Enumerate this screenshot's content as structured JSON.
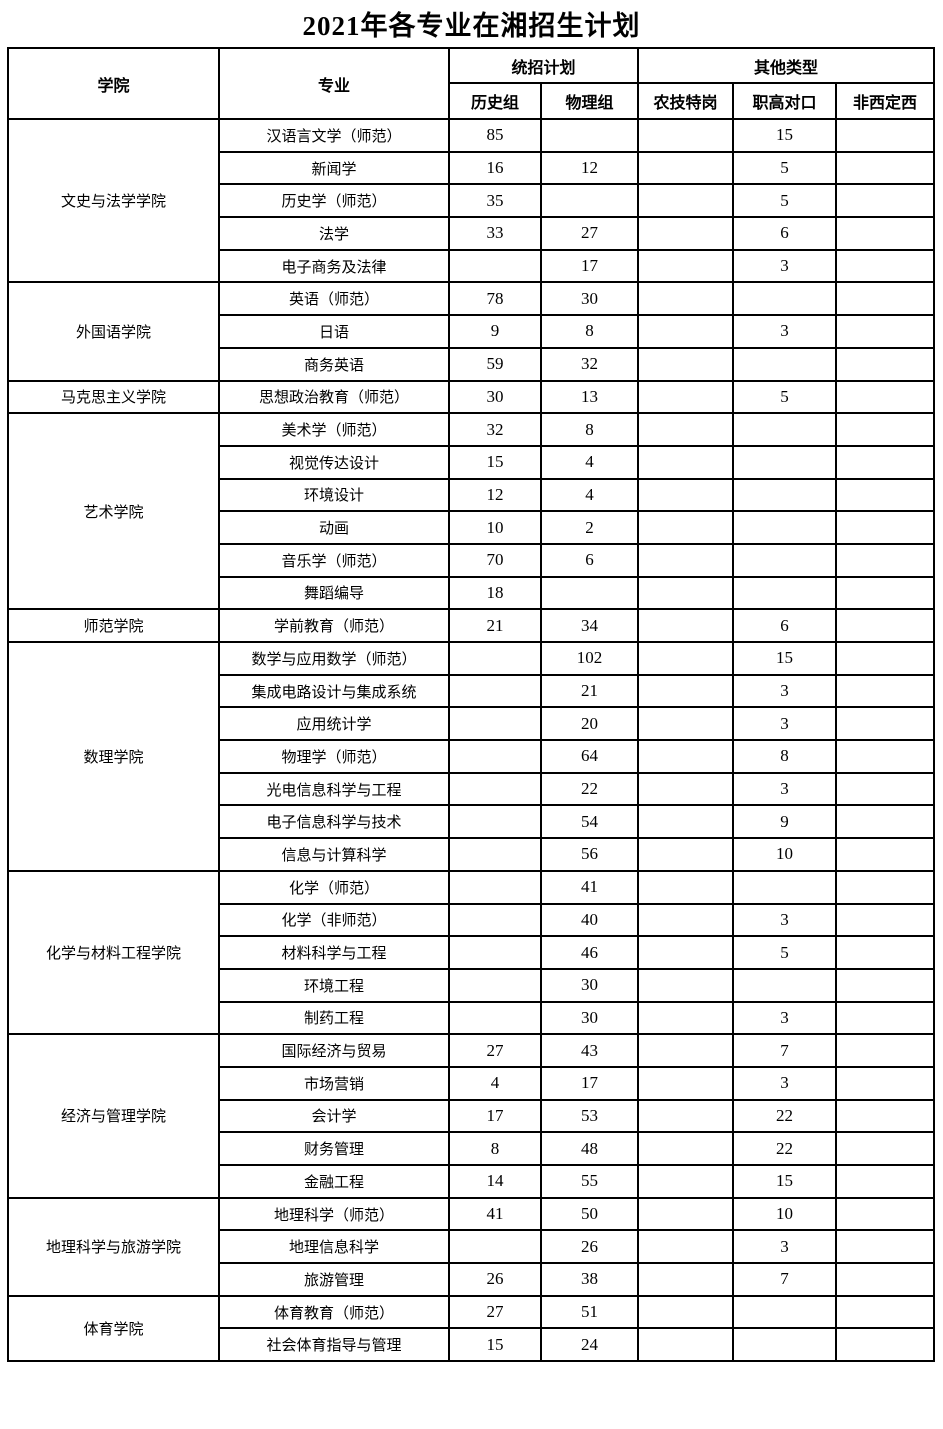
{
  "title": "2021年各专业在湘招生计划",
  "table": {
    "header": {
      "college": "学院",
      "major": "专业",
      "unified_plan": "统招计划",
      "other_types": "其他类型",
      "history_group": "历史组",
      "physics_group": "物理组",
      "agri_special_post": "农技特岗",
      "vocational_match": "职高对口",
      "non_west": "非西定西"
    },
    "sections": [
      {
        "college": "文史与法学学院",
        "rows": [
          {
            "major": "汉语言文学（师范）",
            "values": [
              "85",
              "",
              "",
              "15",
              ""
            ]
          },
          {
            "major": "新闻学",
            "values": [
              "16",
              "12",
              "",
              "5",
              ""
            ]
          },
          {
            "major": "历史学（师范）",
            "values": [
              "35",
              "",
              "",
              "5",
              ""
            ]
          },
          {
            "major": "法学",
            "values": [
              "33",
              "27",
              "",
              "6",
              ""
            ]
          },
          {
            "major": "电子商务及法律",
            "values": [
              "",
              "17",
              "",
              "3",
              ""
            ]
          }
        ]
      },
      {
        "college": "外国语学院",
        "rows": [
          {
            "major": "英语（师范）",
            "values": [
              "78",
              "30",
              "",
              "",
              ""
            ]
          },
          {
            "major": "日语",
            "values": [
              "9",
              "8",
              "",
              "3",
              ""
            ]
          },
          {
            "major": "商务英语",
            "values": [
              "59",
              "32",
              "",
              "",
              ""
            ]
          }
        ]
      },
      {
        "college": "马克思主义学院",
        "rows": [
          {
            "major": "思想政治教育（师范）",
            "values": [
              "30",
              "13",
              "",
              "5",
              ""
            ]
          }
        ]
      },
      {
        "college": "艺术学院",
        "rows": [
          {
            "major": "美术学（师范）",
            "values": [
              "32",
              "8",
              "",
              "",
              ""
            ]
          },
          {
            "major": "视觉传达设计",
            "values": [
              "15",
              "4",
              "",
              "",
              ""
            ]
          },
          {
            "major": "环境设计",
            "values": [
              "12",
              "4",
              "",
              "",
              ""
            ]
          },
          {
            "major": "动画",
            "values": [
              "10",
              "2",
              "",
              "",
              ""
            ]
          },
          {
            "major": "音乐学（师范）",
            "values": [
              "70",
              "6",
              "",
              "",
              ""
            ]
          },
          {
            "major": "舞蹈编导",
            "values": [
              "18",
              "",
              "",
              "",
              ""
            ]
          }
        ]
      },
      {
        "college": "师范学院",
        "rows": [
          {
            "major": "学前教育（师范）",
            "values": [
              "21",
              "34",
              "",
              "6",
              ""
            ]
          }
        ]
      },
      {
        "college": "数理学院",
        "rows": [
          {
            "major": "数学与应用数学（师范）",
            "values": [
              "",
              "102",
              "",
              "15",
              ""
            ]
          },
          {
            "major": "集成电路设计与集成系统",
            "values": [
              "",
              "21",
              "",
              "3",
              ""
            ]
          },
          {
            "major": "应用统计学",
            "values": [
              "",
              "20",
              "",
              "3",
              ""
            ]
          },
          {
            "major": "物理学（师范）",
            "values": [
              "",
              "64",
              "",
              "8",
              ""
            ]
          },
          {
            "major": "光电信息科学与工程",
            "values": [
              "",
              "22",
              "",
              "3",
              ""
            ]
          },
          {
            "major": "电子信息科学与技术",
            "values": [
              "",
              "54",
              "",
              "9",
              ""
            ]
          },
          {
            "major": "信息与计算科学",
            "values": [
              "",
              "56",
              "",
              "10",
              ""
            ]
          }
        ]
      },
      {
        "college": "化学与材料工程学院",
        "rows": [
          {
            "major": "化学（师范）",
            "values": [
              "",
              "41",
              "",
              "",
              ""
            ]
          },
          {
            "major": "化学（非师范）",
            "values": [
              "",
              "40",
              "",
              "3",
              ""
            ]
          },
          {
            "major": "材料科学与工程",
            "values": [
              "",
              "46",
              "",
              "5",
              ""
            ]
          },
          {
            "major": "环境工程",
            "values": [
              "",
              "30",
              "",
              "",
              ""
            ]
          },
          {
            "major": "制药工程",
            "values": [
              "",
              "30",
              "",
              "3",
              ""
            ]
          }
        ]
      },
      {
        "college": "经济与管理学院",
        "rows": [
          {
            "major": "国际经济与贸易",
            "values": [
              "27",
              "43",
              "",
              "7",
              ""
            ]
          },
          {
            "major": "市场营销",
            "values": [
              "4",
              "17",
              "",
              "3",
              ""
            ]
          },
          {
            "major": "会计学",
            "values": [
              "17",
              "53",
              "",
              "22",
              ""
            ]
          },
          {
            "major": "财务管理",
            "values": [
              "8",
              "48",
              "",
              "22",
              ""
            ]
          },
          {
            "major": "金融工程",
            "values": [
              "14",
              "55",
              "",
              "15",
              ""
            ]
          }
        ]
      },
      {
        "college": "地理科学与旅游学院",
        "rows": [
          {
            "major": "地理科学（师范）",
            "values": [
              "41",
              "50",
              "",
              "10",
              ""
            ]
          },
          {
            "major": "地理信息科学",
            "values": [
              "",
              "26",
              "",
              "3",
              ""
            ]
          },
          {
            "major": "旅游管理",
            "values": [
              "26",
              "38",
              "",
              "7",
              ""
            ]
          }
        ]
      },
      {
        "college": "体育学院",
        "rows": [
          {
            "major": "体育教育（师范）",
            "values": [
              "27",
              "51",
              "",
              "",
              ""
            ]
          },
          {
            "major": "社会体育指导与管理",
            "values": [
              "15",
              "24",
              "",
              "",
              ""
            ]
          }
        ]
      }
    ]
  }
}
